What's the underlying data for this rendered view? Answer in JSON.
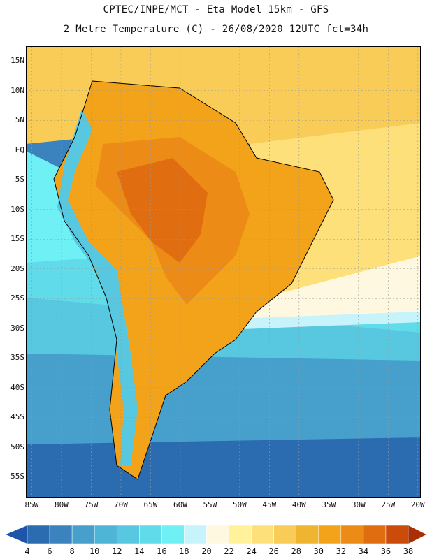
{
  "header": {
    "line1": "CPTEC/INPE/MCT -  Eta Model 15km - GFS",
    "line2": "2 Metre Temperature (C) - 26/08/2020 12UTC fct=34h"
  },
  "map": {
    "lat_labels": [
      "15N",
      "10N",
      "5N",
      "EQ",
      "5S",
      "10S",
      "15S",
      "20S",
      "25S",
      "30S",
      "35S",
      "40S",
      "45S",
      "50S",
      "55S"
    ],
    "lon_labels": [
      "85W",
      "80W",
      "75W",
      "70W",
      "65W",
      "60W",
      "55W",
      "50W",
      "45W",
      "40W",
      "35W",
      "30W",
      "25W",
      "20W"
    ]
  },
  "colorbar": {
    "ticks": [
      "4",
      "6",
      "8",
      "10",
      "12",
      "14",
      "16",
      "18",
      "20",
      "22",
      "24",
      "26",
      "28",
      "30",
      "32",
      "34",
      "36",
      "38"
    ],
    "colors": {
      "below": "#1f55a8",
      "bins": [
        "#2b6cb0",
        "#3a83bf",
        "#47a0cc",
        "#4fb5d6",
        "#57c8df",
        "#5fdbe9",
        "#6ff0f5",
        "#c7f3fa",
        "#fff8e0",
        "#fff29a",
        "#fde07a",
        "#f8cc56",
        "#efb531",
        "#f2a31a",
        "#ec8b16",
        "#e06e10",
        "#cc4a0a"
      ],
      "above": "#a83006"
    }
  },
  "field_colors": {
    "ocean_cold": "#2b6cb0",
    "ocean_cool": "#3a83bf",
    "ocean_mid": "#47a0cc",
    "ocean_mild": "#57c8df",
    "ocean_light": "#5fdbe9",
    "ocean_cyan": "#6ff0f5",
    "pale": "#c7f3fa",
    "cream": "#fff8e0",
    "ocean_warm": "#f8cc56",
    "ocean_yellow": "#fde07a",
    "land_hot": "#e06e10",
    "land_warm": "#ec8b16",
    "land_orange": "#f2a31a",
    "andes": "#57c8df"
  }
}
